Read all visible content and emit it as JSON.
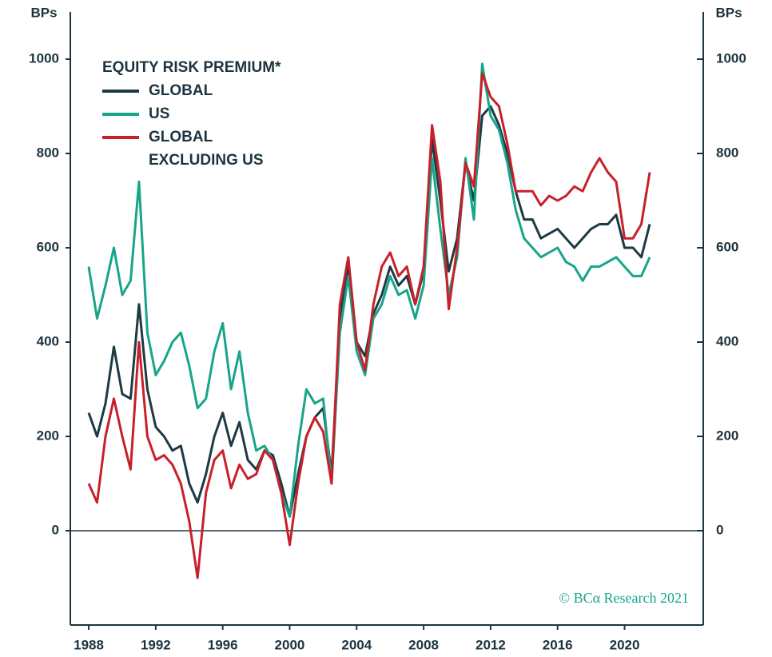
{
  "chart_data": {
    "type": "line",
    "title": "EQUITY RISK PREMIUM*",
    "ylabel": "BPs",
    "y2label": "BPs",
    "source": "© BCα Research 2021",
    "x": [
      1988,
      1988.5,
      1989,
      1989.5,
      1990,
      1990.5,
      1991,
      1991.5,
      1992,
      1992.5,
      1993,
      1993.5,
      1994,
      1994.5,
      1995,
      1995.5,
      1996,
      1996.5,
      1997,
      1997.5,
      1998,
      1998.5,
      1999,
      1999.5,
      2000,
      2000.5,
      2001,
      2001.5,
      2002,
      2002.5,
      2003,
      2003.5,
      2004,
      2004.5,
      2005,
      2005.5,
      2006,
      2006.5,
      2007,
      2007.5,
      2008,
      2008.5,
      2009,
      2009.5,
      2010,
      2010.5,
      2011,
      2011.5,
      2012,
      2012.5,
      2013,
      2013.5,
      2014,
      2014.5,
      2015,
      2015.5,
      2016,
      2016.5,
      2017,
      2017.5,
      2018,
      2018.5,
      2019,
      2019.5,
      2020,
      2020.5,
      2021,
      2021.5
    ],
    "series": [
      {
        "name": "GLOBAL",
        "color": "#1e3a44",
        "values": [
          250,
          200,
          270,
          390,
          290,
          280,
          480,
          300,
          220,
          200,
          170,
          180,
          100,
          60,
          120,
          200,
          250,
          180,
          230,
          150,
          130,
          170,
          160,
          100,
          30,
          120,
          200,
          240,
          260,
          120,
          450,
          560,
          400,
          370,
          460,
          500,
          560,
          520,
          540,
          480,
          550,
          830,
          700,
          550,
          620,
          780,
          700,
          880,
          900,
          860,
          800,
          720,
          660,
          660,
          620,
          630,
          640,
          620,
          600,
          620,
          640,
          650,
          650,
          670,
          600,
          600,
          580,
          650
        ]
      },
      {
        "name": "US",
        "color": "#17a589",
        "values": [
          560,
          450,
          520,
          600,
          500,
          530,
          740,
          420,
          330,
          360,
          400,
          420,
          350,
          260,
          280,
          380,
          440,
          300,
          380,
          250,
          170,
          180,
          150,
          80,
          30,
          180,
          300,
          270,
          280,
          100,
          420,
          540,
          380,
          330,
          450,
          480,
          540,
          500,
          510,
          450,
          520,
          790,
          640,
          500,
          580,
          790,
          660,
          990,
          880,
          850,
          780,
          680,
          620,
          600,
          580,
          590,
          600,
          570,
          560,
          530,
          560,
          560,
          570,
          580,
          560,
          540,
          540,
          580
        ]
      },
      {
        "name": "GLOBAL EXCLUDING US",
        "color": "#c8202a",
        "values": [
          100,
          60,
          200,
          280,
          200,
          130,
          400,
          200,
          150,
          160,
          140,
          100,
          20,
          -100,
          80,
          150,
          170,
          90,
          140,
          110,
          120,
          170,
          150,
          80,
          -30,
          100,
          200,
          240,
          210,
          100,
          480,
          580,
          400,
          340,
          480,
          560,
          590,
          540,
          560,
          480,
          560,
          860,
          740,
          470,
          600,
          780,
          730,
          970,
          920,
          900,
          820,
          720,
          720,
          720,
          690,
          710,
          700,
          710,
          730,
          720,
          760,
          790,
          760,
          740,
          620,
          620,
          650,
          760
        ]
      }
    ],
    "xlim": [
      1986.9,
      2024.7
    ],
    "xticks": [
      1988,
      1992,
      1996,
      2000,
      2004,
      2008,
      2012,
      2016,
      2020
    ],
    "ylim": [
      -200,
      1100
    ],
    "yticks": [
      0,
      200,
      400,
      600,
      800,
      1000
    ],
    "y2lim": [
      -200,
      1100
    ],
    "y2ticks": [
      0,
      200,
      400,
      600,
      800,
      1000
    ],
    "zero_line": true
  }
}
